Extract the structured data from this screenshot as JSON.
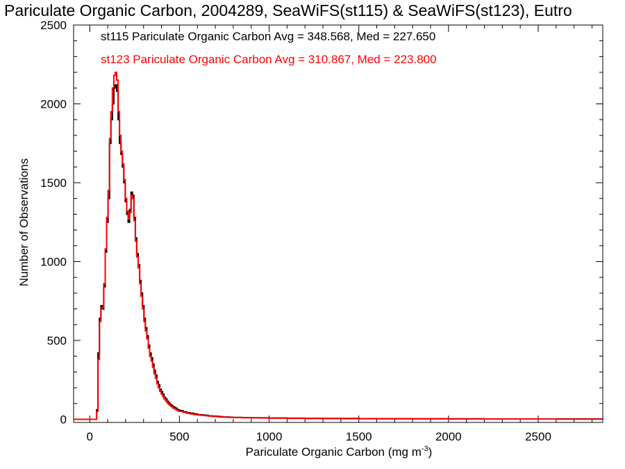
{
  "chart_data": {
    "type": "histogram",
    "title": "Pariculate Organic Carbon, 2004289, SeaWiFS(st115) & SeaWiFS(st123), Eutro",
    "xlabel": "Pariculate Organic Carbon (mg m",
    "xlabel_sup": "-3",
    "xlabel_suffix": ")",
    "ylabel": "Number of Observations",
    "xlim": [
      -90,
      2860
    ],
    "ylim": [
      -20,
      2500
    ],
    "x_ticks": [
      0,
      500,
      1000,
      1500,
      2000,
      2500
    ],
    "x_tick_labels": [
      "0",
      "500",
      "1000",
      "1500",
      "2000",
      "2500"
    ],
    "y_ticks": [
      0,
      500,
      1000,
      1500,
      2000,
      2500
    ],
    "y_tick_labels": [
      "0",
      "500",
      "1000",
      "1500",
      "2000",
      "2500"
    ],
    "grid": false,
    "legend_position": "top-left",
    "series": [
      {
        "name": "st115",
        "label": "st115 Pariculate Organic Carbon Avg = 348.568, Med = 227.650",
        "color": "#000000",
        "points": [
          [
            -90,
            0
          ],
          [
            30,
            0
          ],
          [
            38,
            60
          ],
          [
            46,
            420
          ],
          [
            54,
            640
          ],
          [
            62,
            720
          ],
          [
            70,
            700
          ],
          [
            78,
            840
          ],
          [
            86,
            1060
          ],
          [
            94,
            1250
          ],
          [
            102,
            1400
          ],
          [
            110,
            1750
          ],
          [
            118,
            1900
          ],
          [
            126,
            2000
          ],
          [
            134,
            2100
          ],
          [
            142,
            2120
          ],
          [
            150,
            2080
          ],
          [
            158,
            1900
          ],
          [
            166,
            1750
          ],
          [
            174,
            1680
          ],
          [
            182,
            1600
          ],
          [
            190,
            1500
          ],
          [
            198,
            1380
          ],
          [
            206,
            1300
          ],
          [
            214,
            1250
          ],
          [
            222,
            1330
          ],
          [
            230,
            1440
          ],
          [
            238,
            1420
          ],
          [
            246,
            1280
          ],
          [
            254,
            1150
          ],
          [
            262,
            1050
          ],
          [
            270,
            980
          ],
          [
            278,
            880
          ],
          [
            286,
            800
          ],
          [
            294,
            720
          ],
          [
            302,
            640
          ],
          [
            310,
            580
          ],
          [
            318,
            530
          ],
          [
            326,
            470
          ],
          [
            334,
            420
          ],
          [
            342,
            390
          ],
          [
            350,
            350
          ],
          [
            358,
            310
          ],
          [
            366,
            280
          ],
          [
            374,
            240
          ],
          [
            382,
            220
          ],
          [
            390,
            190
          ],
          [
            398,
            175
          ],
          [
            406,
            160
          ],
          [
            414,
            140
          ],
          [
            422,
            130
          ],
          [
            430,
            115
          ],
          [
            438,
            105
          ],
          [
            446,
            95
          ],
          [
            454,
            88
          ],
          [
            462,
            80
          ],
          [
            470,
            75
          ],
          [
            478,
            70
          ],
          [
            486,
            62
          ],
          [
            494,
            58
          ],
          [
            502,
            55
          ],
          [
            520,
            48
          ],
          [
            540,
            42
          ],
          [
            560,
            38
          ],
          [
            580,
            34
          ],
          [
            600,
            30
          ],
          [
            620,
            28
          ],
          [
            640,
            26
          ],
          [
            660,
            22
          ],
          [
            680,
            20
          ],
          [
            700,
            19
          ],
          [
            720,
            17
          ],
          [
            740,
            15
          ],
          [
            760,
            15
          ],
          [
            780,
            13
          ],
          [
            800,
            12
          ],
          [
            850,
            11
          ],
          [
            900,
            10
          ],
          [
            950,
            9
          ],
          [
            1000,
            8
          ],
          [
            1100,
            7
          ],
          [
            1200,
            6
          ],
          [
            1300,
            5
          ],
          [
            1400,
            5
          ],
          [
            1500,
            4
          ],
          [
            1600,
            4
          ],
          [
            1800,
            3
          ],
          [
            2000,
            3
          ],
          [
            2200,
            2
          ],
          [
            2400,
            2
          ],
          [
            2600,
            2
          ],
          [
            2860,
            1
          ]
        ]
      },
      {
        "name": "st123",
        "label": "st123 Pariculate Organic Carbon Avg = 310.867, Med = 223.800",
        "color": "#ff0000",
        "points": [
          [
            -90,
            0
          ],
          [
            30,
            0
          ],
          [
            38,
            50
          ],
          [
            46,
            380
          ],
          [
            54,
            620
          ],
          [
            62,
            700
          ],
          [
            70,
            710
          ],
          [
            78,
            860
          ],
          [
            86,
            1080
          ],
          [
            94,
            1280
          ],
          [
            102,
            1450
          ],
          [
            110,
            1780
          ],
          [
            118,
            1950
          ],
          [
            126,
            2100
          ],
          [
            134,
            2180
          ],
          [
            142,
            2200
          ],
          [
            150,
            2150
          ],
          [
            158,
            1950
          ],
          [
            166,
            1800
          ],
          [
            174,
            1700
          ],
          [
            182,
            1620
          ],
          [
            190,
            1520
          ],
          [
            198,
            1400
          ],
          [
            206,
            1320
          ],
          [
            214,
            1270
          ],
          [
            222,
            1310
          ],
          [
            230,
            1420
          ],
          [
            238,
            1400
          ],
          [
            246,
            1260
          ],
          [
            254,
            1130
          ],
          [
            262,
            1030
          ],
          [
            270,
            960
          ],
          [
            278,
            860
          ],
          [
            286,
            780
          ],
          [
            294,
            700
          ],
          [
            302,
            620
          ],
          [
            310,
            560
          ],
          [
            318,
            510
          ],
          [
            326,
            450
          ],
          [
            334,
            400
          ],
          [
            342,
            370
          ],
          [
            350,
            330
          ],
          [
            358,
            290
          ],
          [
            366,
            260
          ],
          [
            374,
            225
          ],
          [
            382,
            200
          ],
          [
            390,
            178
          ],
          [
            398,
            160
          ],
          [
            406,
            145
          ],
          [
            414,
            128
          ],
          [
            422,
            118
          ],
          [
            430,
            105
          ],
          [
            438,
            95
          ],
          [
            446,
            86
          ],
          [
            454,
            80
          ],
          [
            462,
            72
          ],
          [
            470,
            68
          ],
          [
            478,
            62
          ],
          [
            486,
            56
          ],
          [
            494,
            52
          ],
          [
            502,
            50
          ],
          [
            520,
            44
          ],
          [
            540,
            38
          ],
          [
            560,
            34
          ],
          [
            580,
            30
          ],
          [
            600,
            27
          ],
          [
            620,
            25
          ],
          [
            640,
            23
          ],
          [
            660,
            20
          ],
          [
            680,
            18
          ],
          [
            700,
            17
          ],
          [
            720,
            15
          ],
          [
            740,
            14
          ],
          [
            760,
            13
          ],
          [
            780,
            12
          ],
          [
            800,
            11
          ],
          [
            850,
            10
          ],
          [
            900,
            9
          ],
          [
            950,
            8
          ],
          [
            1000,
            7
          ],
          [
            1100,
            6
          ],
          [
            1200,
            5
          ],
          [
            1300,
            5
          ],
          [
            1400,
            4
          ],
          [
            1500,
            4
          ],
          [
            1600,
            3
          ],
          [
            1800,
            3
          ],
          [
            2000,
            2
          ],
          [
            2200,
            2
          ],
          [
            2400,
            2
          ],
          [
            2600,
            1
          ],
          [
            2860,
            1
          ]
        ]
      }
    ]
  }
}
